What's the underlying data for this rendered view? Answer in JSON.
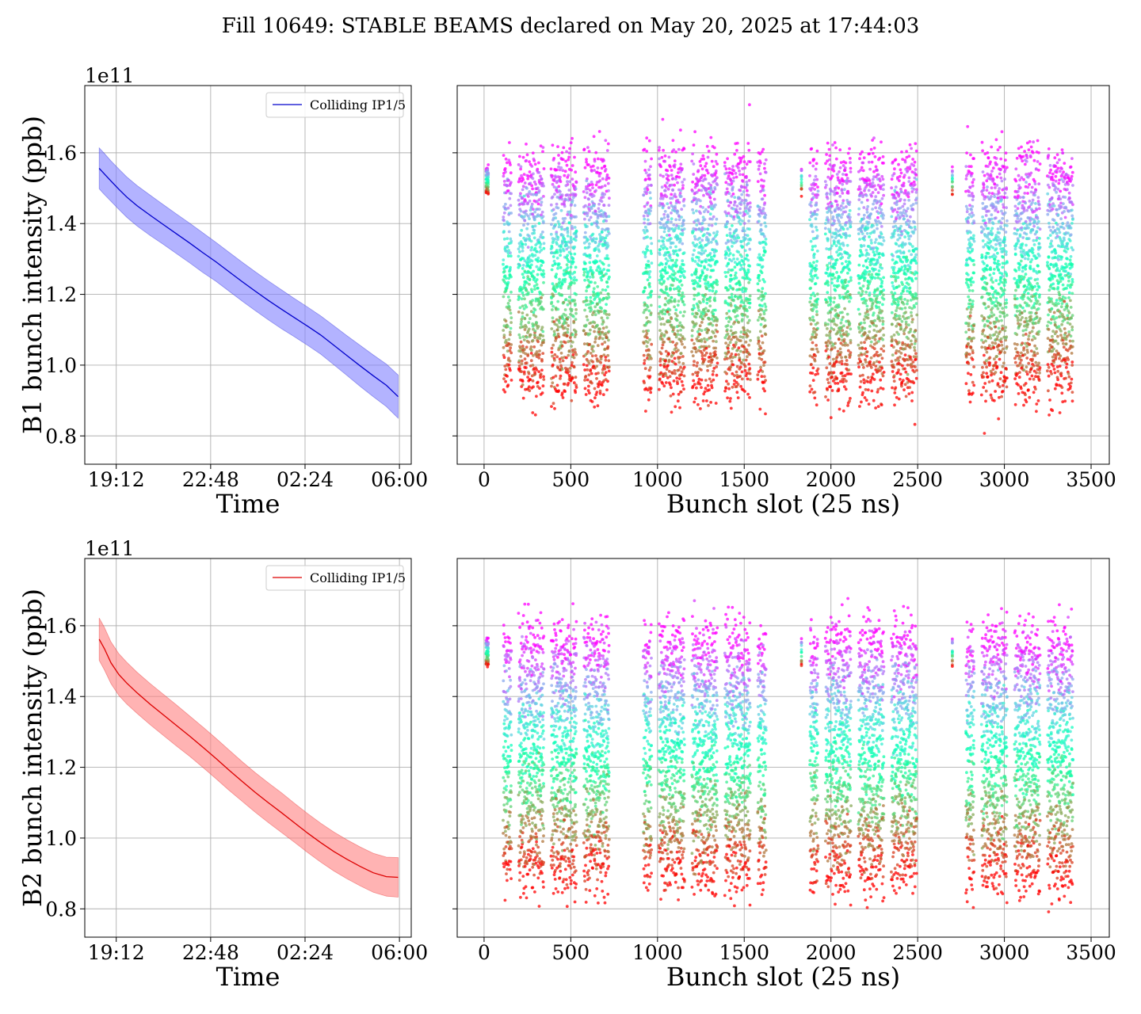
{
  "suptitle": "Fill 10649: STABLE BEAMS declared on May 20, 2025 at 17:44:03",
  "colors": {
    "b1_line": "#0000cc",
    "b1_band": "#8080ff",
    "b2_line": "#dd0000",
    "b2_band": "#ff8080",
    "grid": "#b0b0b0"
  },
  "chart_data": [
    {
      "type": "line",
      "panel": "b1-time",
      "ylabel": "B1 bunch intensity (ppb)",
      "xlabel": "Time",
      "y_scale_label": "1e11",
      "x_tick_labels": [
        "19:12",
        "22:48",
        "02:24",
        "06:00"
      ],
      "x_tick_values": [
        1.2,
        4.8,
        8.4,
        12.0
      ],
      "xlim": [
        0.0,
        12.45
      ],
      "ylim": [
        0.72,
        1.79
      ],
      "y_ticks": [
        0.8,
        1.0,
        1.2,
        1.4,
        1.6
      ],
      "y_tick_labels": [
        "0.8",
        "1.0",
        "1.2",
        "1.4",
        "1.6"
      ],
      "legend": {
        "label": "Colliding IP1/5",
        "placement": "upper-right"
      },
      "grid": true,
      "series": [
        {
          "name": "Colliding IP1/5",
          "x": [
            0.55,
            0.75,
            1.0,
            1.3,
            1.6,
            2.0,
            2.5,
            3.0,
            3.5,
            4.0,
            4.5,
            5.0,
            5.5,
            6.0,
            6.5,
            7.0,
            7.5,
            8.0,
            8.5,
            9.0,
            9.5,
            10.0,
            10.5,
            11.0,
            11.5,
            11.95
          ],
          "y": [
            1.556,
            1.54,
            1.52,
            1.497,
            1.475,
            1.45,
            1.423,
            1.397,
            1.371,
            1.345,
            1.318,
            1.292,
            1.264,
            1.236,
            1.209,
            1.183,
            1.158,
            1.134,
            1.11,
            1.085,
            1.056,
            1.027,
            0.998,
            0.97,
            0.943,
            0.911
          ],
          "band_halfwidth": [
            0.058,
            0.058,
            0.057,
            0.057,
            0.057,
            0.057,
            0.057,
            0.056,
            0.056,
            0.056,
            0.056,
            0.055,
            0.055,
            0.055,
            0.055,
            0.055,
            0.055,
            0.054,
            0.054,
            0.054,
            0.055,
            0.056,
            0.058,
            0.059,
            0.06,
            0.061
          ]
        }
      ]
    },
    {
      "type": "scatter",
      "panel": "b1-slot",
      "xlabel": "Bunch slot (25 ns)",
      "x_ticks": [
        0,
        500,
        1000,
        1500,
        2000,
        2500,
        3000,
        3500
      ],
      "xlim": [
        -155,
        3605
      ],
      "ylim": [
        0.72,
        1.79
      ],
      "y_ticks": [
        0.8,
        1.0,
        1.2,
        1.4,
        1.6
      ],
      "grid": true,
      "colormap": "rainbow (purple = start of fill, red = end of fill)",
      "trains": [
        [
          12,
          24
        ],
        [
          112,
          156
        ],
        [
          200,
          346
        ],
        [
          388,
          534
        ],
        [
          576,
          722
        ],
        [
          920,
          966
        ],
        [
          1010,
          1156
        ],
        [
          1200,
          1346
        ],
        [
          1390,
          1536
        ],
        [
          1580,
          1626
        ],
        [
          1830,
          1830
        ],
        [
          1880,
          1926
        ],
        [
          1970,
          2116
        ],
        [
          2160,
          2306
        ],
        [
          2350,
          2496
        ],
        [
          2700,
          2700
        ],
        [
          2780,
          2826
        ],
        [
          2870,
          3016
        ],
        [
          3060,
          3206
        ],
        [
          3250,
          3396
        ]
      ],
      "time_levels": 14,
      "level_means": [
        1.556,
        1.51,
        1.465,
        1.42,
        1.375,
        1.33,
        1.285,
        1.24,
        1.195,
        1.15,
        1.1,
        1.05,
        1.0,
        0.95
      ],
      "spread": 0.06
    },
    {
      "type": "line",
      "panel": "b2-time",
      "ylabel": "B2 bunch intensity (ppb)",
      "xlabel": "Time",
      "y_scale_label": "1e11",
      "x_tick_labels": [
        "19:12",
        "22:48",
        "02:24",
        "06:00"
      ],
      "x_tick_values": [
        1.2,
        4.8,
        8.4,
        12.0
      ],
      "xlim": [
        0.0,
        12.45
      ],
      "ylim": [
        0.72,
        1.79
      ],
      "y_ticks": [
        0.8,
        1.0,
        1.2,
        1.4,
        1.6
      ],
      "y_tick_labels": [
        "0.8",
        "1.0",
        "1.2",
        "1.4",
        "1.6"
      ],
      "legend": {
        "label": "Colliding IP1/5",
        "placement": "upper-right"
      },
      "grid": true,
      "series": [
        {
          "name": "Colliding IP1/5",
          "x": [
            0.55,
            0.75,
            1.0,
            1.3,
            1.6,
            2.0,
            2.5,
            3.0,
            3.5,
            4.0,
            4.5,
            5.0,
            5.5,
            6.0,
            6.5,
            7.0,
            7.5,
            8.0,
            8.5,
            9.0,
            9.5,
            10.0,
            10.5,
            11.0,
            11.5,
            11.95
          ],
          "y": [
            1.562,
            1.535,
            1.495,
            1.462,
            1.438,
            1.41,
            1.378,
            1.348,
            1.318,
            1.288,
            1.257,
            1.225,
            1.192,
            1.16,
            1.129,
            1.1,
            1.072,
            1.043,
            1.014,
            0.987,
            0.962,
            0.94,
            0.92,
            0.902,
            0.891,
            0.889
          ],
          "band_halfwidth": [
            0.06,
            0.06,
            0.059,
            0.059,
            0.059,
            0.058,
            0.058,
            0.058,
            0.058,
            0.057,
            0.057,
            0.057,
            0.057,
            0.056,
            0.056,
            0.056,
            0.056,
            0.055,
            0.055,
            0.055,
            0.055,
            0.055,
            0.055,
            0.055,
            0.055,
            0.056
          ]
        }
      ]
    },
    {
      "type": "scatter",
      "panel": "b2-slot",
      "xlabel": "Bunch slot (25 ns)",
      "x_ticks": [
        0,
        500,
        1000,
        1500,
        2000,
        2500,
        3000,
        3500
      ],
      "xlim": [
        -155,
        3605
      ],
      "ylim": [
        0.72,
        1.79
      ],
      "y_ticks": [
        0.8,
        1.0,
        1.2,
        1.4,
        1.6
      ],
      "grid": true,
      "colormap": "rainbow (purple = start of fill, red = end of fill)",
      "trains": [
        [
          12,
          24
        ],
        [
          112,
          156
        ],
        [
          200,
          346
        ],
        [
          388,
          534
        ],
        [
          576,
          722
        ],
        [
          920,
          966
        ],
        [
          1010,
          1156
        ],
        [
          1200,
          1346
        ],
        [
          1390,
          1536
        ],
        [
          1580,
          1626
        ],
        [
          1830,
          1830
        ],
        [
          1880,
          1926
        ],
        [
          1970,
          2116
        ],
        [
          2160,
          2306
        ],
        [
          2350,
          2496
        ],
        [
          2700,
          2700
        ],
        [
          2780,
          2826
        ],
        [
          2870,
          3016
        ],
        [
          3060,
          3206
        ],
        [
          3250,
          3396
        ]
      ],
      "time_levels": 14,
      "level_means": [
        1.562,
        1.51,
        1.46,
        1.41,
        1.36,
        1.31,
        1.26,
        1.21,
        1.16,
        1.11,
        1.06,
        1.01,
        0.96,
        0.9
      ],
      "spread": 0.06
    }
  ]
}
